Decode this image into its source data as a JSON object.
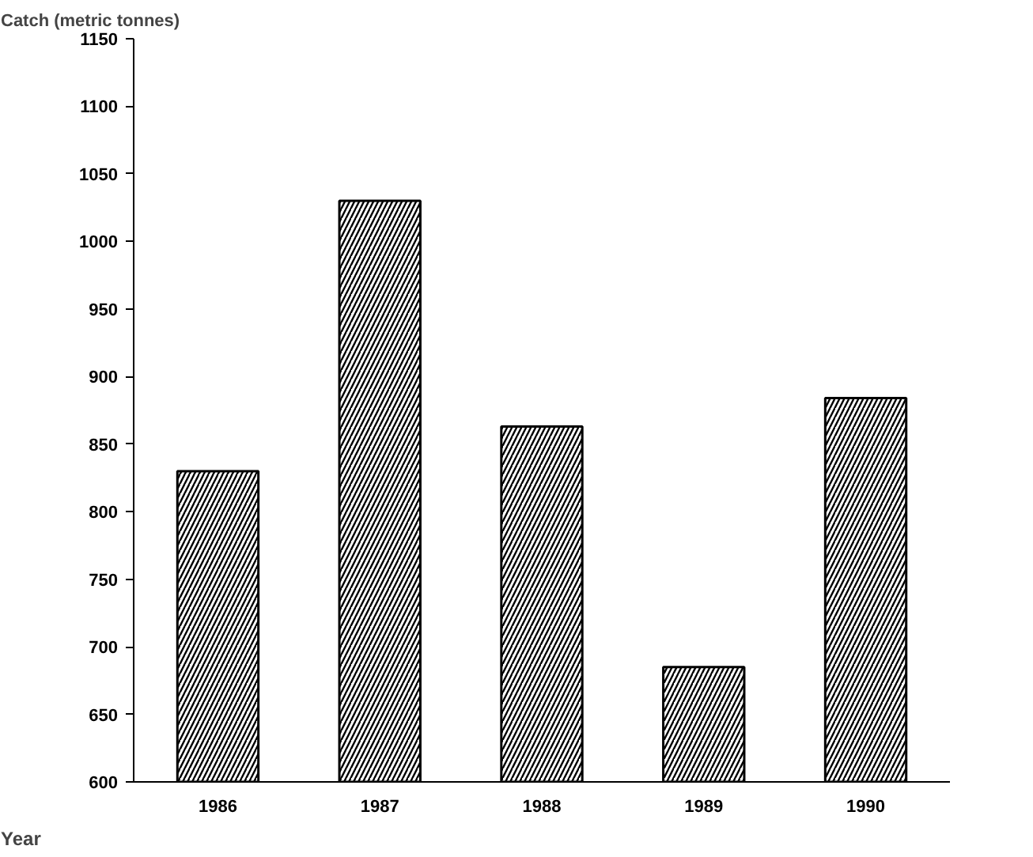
{
  "chart_data": {
    "type": "bar",
    "ylabel": "Catch (metric tonnes)",
    "xlabel": "Year",
    "categories": [
      "1986",
      "1987",
      "1988",
      "1989",
      "1990"
    ],
    "series": [
      {
        "color": "#000000",
        "values": [
          830,
          1030,
          863,
          685,
          884
        ]
      }
    ],
    "ylim": [
      600,
      1150
    ],
    "yticks": [
      600,
      650,
      700,
      750,
      800,
      850,
      900,
      950,
      1000,
      1050,
      1100,
      1150
    ],
    "grid": false
  }
}
